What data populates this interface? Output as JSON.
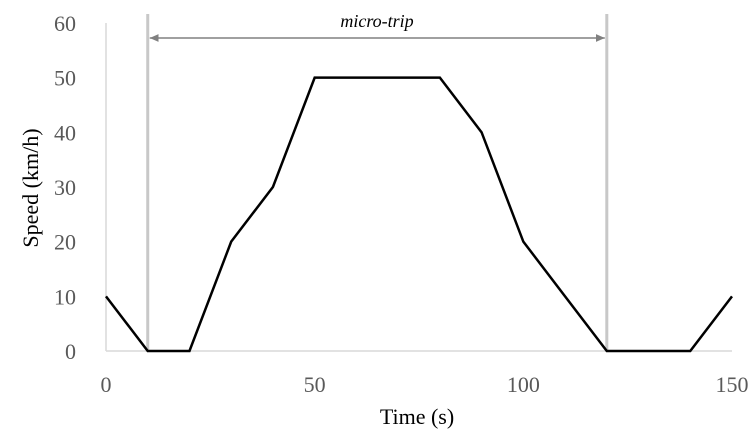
{
  "chart_data": {
    "type": "line",
    "title": "",
    "xlabel": "Time (s)",
    "ylabel": "Speed (km/h)",
    "xlim": [
      0,
      150
    ],
    "ylim": [
      0,
      60
    ],
    "x_ticks": [
      0,
      50,
      100,
      150
    ],
    "y_ticks": [
      0,
      10,
      20,
      30,
      40,
      50,
      60
    ],
    "grid": false,
    "legend": "none",
    "series": [
      {
        "x": [
          0,
          10,
          20,
          30,
          40,
          50,
          60,
          70,
          80,
          90,
          100,
          110,
          120,
          130,
          140,
          150
        ],
        "y": [
          10,
          0,
          0,
          20,
          30,
          50,
          50,
          50,
          50,
          40,
          20,
          10,
          0,
          0,
          0,
          10
        ]
      }
    ],
    "markers": {
      "x": [
        10,
        120
      ],
      "color": "#c8c8c8"
    },
    "annotation": {
      "text": "micro-trip",
      "x_from": 10,
      "x_to": 120
    },
    "colors": {
      "line": "#000000",
      "axis": "#d9d9d9",
      "markers": "#c8c8c8",
      "arrow": "#808080"
    }
  }
}
